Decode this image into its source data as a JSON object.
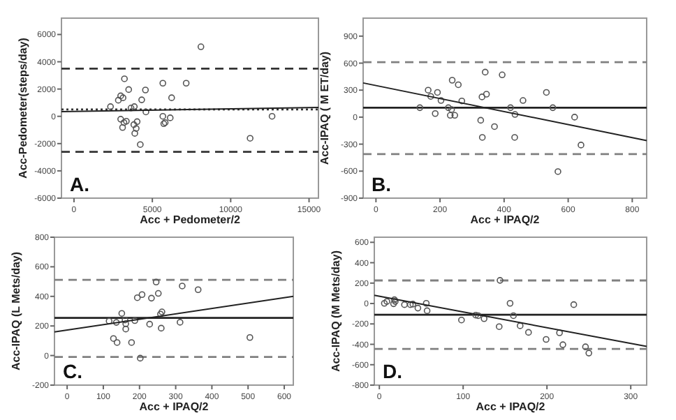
{
  "chart_data": [
    {
      "type": "scatter",
      "xlabel": "Acc + Pedometer/2",
      "ylabel": "Acc-Pedometer(steps/day)",
      "annotations": [
        "A."
      ],
      "xlim": [
        -800,
        15600
      ],
      "ylim": [
        -6000,
        7200
      ],
      "xticks": [
        0,
        5000,
        10000,
        15000
      ],
      "yticks": [
        -6000,
        -4000,
        -2000,
        0,
        2000,
        4000,
        6000
      ],
      "grid": false,
      "ref_lines": [
        {
          "axis": "y",
          "value": 3500,
          "line_style": "dashed",
          "color": "#333333"
        },
        {
          "axis": "y",
          "value": -2600,
          "line_style": "dashed",
          "color": "#333333"
        },
        {
          "axis": "y",
          "value": 500,
          "line_style": "dotted",
          "color": "#333333"
        }
      ],
      "series": [
        {
          "marker": "circle",
          "color": "#555555",
          "x": [
            8100,
            3220,
            5670,
            7160,
            4560,
            3490,
            6230,
            2980,
            3130,
            2830,
            4320,
            2330,
            3850,
            3640,
            4590,
            5670,
            6140,
            5730,
            5820,
            2980,
            3190,
            3340,
            3100,
            3820,
            4030,
            3970,
            3880,
            4230,
            11240,
            12640
          ],
          "values": [
            5100,
            2750,
            2430,
            2430,
            1930,
            1960,
            1360,
            1500,
            1360,
            1180,
            1210,
            710,
            710,
            610,
            320,
            0,
            -110,
            -540,
            -460,
            -210,
            -460,
            -360,
            -820,
            -610,
            -390,
            -890,
            -1250,
            -2070,
            -1610,
            0
          ]
        },
        {
          "type": "line",
          "marker": "none",
          "color": "#222222",
          "line_style": "solid",
          "x": [
            -800,
            15600
          ],
          "values": [
            350,
            650
          ]
        }
      ]
    },
    {
      "type": "scatter",
      "xlabel": "Acc + IPAQ/2",
      "ylabel": "Acc-IPAQ ( M ET/day)",
      "annotations": [
        "B."
      ],
      "xlim": [
        -40,
        845
      ],
      "ylim": [
        -900,
        1100
      ],
      "xticks": [
        0,
        200,
        400,
        600,
        800
      ],
      "yticks": [
        -900,
        -600,
        -300,
        0,
        300,
        600,
        900
      ],
      "grid": false,
      "ref_lines": [
        {
          "axis": "y",
          "value": 610,
          "line_style": "dashed",
          "color": "#808080"
        },
        {
          "axis": "y",
          "value": -410,
          "line_style": "dashed",
          "color": "#808080"
        },
        {
          "axis": "y",
          "value": 105,
          "line_style": "solid",
          "color": "#222222"
        }
      ],
      "series": [
        {
          "marker": "circle",
          "color": "#555555",
          "x": [
            137,
            163,
            171,
            192,
            203,
            185,
            226,
            236,
            232,
            246,
            238,
            257,
            268,
            331,
            345,
            341,
            394,
            327,
            332,
            370,
            420,
            434,
            433,
            459,
            532,
            552,
            620,
            640,
            568
          ],
          "values": [
            105,
            300,
            230,
            275,
            185,
            40,
            105,
            85,
            20,
            20,
            410,
            360,
            180,
            225,
            255,
            500,
            470,
            -35,
            -225,
            -105,
            105,
            30,
            -225,
            185,
            275,
            105,
            0,
            -310,
            -605
          ]
        },
        {
          "type": "line",
          "marker": "none",
          "color": "#222222",
          "line_style": "solid",
          "x": [
            -40,
            845
          ],
          "values": [
            380,
            -260
          ]
        }
      ]
    },
    {
      "type": "scatter",
      "xlabel": "Acc + IPAQ/2",
      "ylabel": "Acc-IPAQ (L Mets/day)",
      "annotations": [
        "C."
      ],
      "xlim": [
        -35,
        625
      ],
      "ylim": [
        -200,
        800
      ],
      "xticks": [
        0,
        100,
        200,
        300,
        400,
        500,
        600
      ],
      "yticks": [
        -200,
        0,
        200,
        400,
        600,
        800
      ],
      "grid": false,
      "ref_lines": [
        {
          "axis": "y",
          "value": 512,
          "line_style": "dashed",
          "color": "#808080"
        },
        {
          "axis": "y",
          "value": -10,
          "line_style": "dashed",
          "color": "#808080"
        },
        {
          "axis": "y",
          "value": 255,
          "line_style": "solid",
          "color": "#222222"
        }
      ],
      "series": [
        {
          "marker": "circle",
          "color": "#555555",
          "x": [
            116,
            128,
            138,
            136,
            151,
            162,
            162,
            160,
            178,
            187,
            194,
            207,
            202,
            233,
            228,
            246,
            252,
            260,
            258,
            262,
            318,
            312,
            362,
            505
          ],
          "values": [
            233,
            115,
            88,
            224,
            285,
            179,
            215,
            240,
            88,
            236,
            391,
            412,
            -18,
            388,
            212,
            497,
            420,
            185,
            280,
            295,
            470,
            225,
            445,
            122
          ]
        },
        {
          "type": "line",
          "marker": "none",
          "color": "#222222",
          "line_style": "solid",
          "x": [
            -35,
            625
          ],
          "values": [
            160,
            400
          ]
        }
      ]
    },
    {
      "type": "scatter",
      "xlabel": "Acc + IPAQ/2",
      "ylabel": "Acc-IPAQ (M  Mets/day)",
      "annotations": [
        "D."
      ],
      "xlim": [
        -6,
        319
      ],
      "ylim": [
        -800,
        650
      ],
      "xticks": [
        0,
        100,
        200,
        300
      ],
      "yticks": [
        -800,
        -600,
        -400,
        -200,
        0,
        200,
        400,
        600
      ],
      "grid": false,
      "ref_lines": [
        {
          "axis": "y",
          "value": 226,
          "line_style": "dashed",
          "color": "#808080"
        },
        {
          "axis": "y",
          "value": -445,
          "line_style": "dashed",
          "color": "#808080"
        },
        {
          "axis": "y",
          "value": -110,
          "line_style": "solid",
          "color": "#222222"
        }
      ],
      "series": [
        {
          "marker": "circle",
          "color": "#555555",
          "x": [
            6,
            9,
            18,
            19,
            17,
            30,
            37,
            40,
            46,
            56,
            57,
            98,
            115,
            118,
            125,
            143,
            144,
            156,
            160,
            168,
            178,
            199,
            215,
            219,
            232,
            246,
            250
          ],
          "values": [
            2,
            20,
            37,
            20,
            -2,
            -11,
            -11,
            -6,
            -45,
            2,
            -71,
            -162,
            -114,
            -119,
            -149,
            -227,
            227,
            2,
            -119,
            -218,
            -283,
            -352,
            -287,
            -404,
            -11,
            -425,
            -486
          ]
        },
        {
          "type": "line",
          "marker": "none",
          "color": "#222222",
          "line_style": "solid",
          "x": [
            -6,
            319
          ],
          "values": [
            80,
            -420
          ]
        }
      ]
    }
  ]
}
